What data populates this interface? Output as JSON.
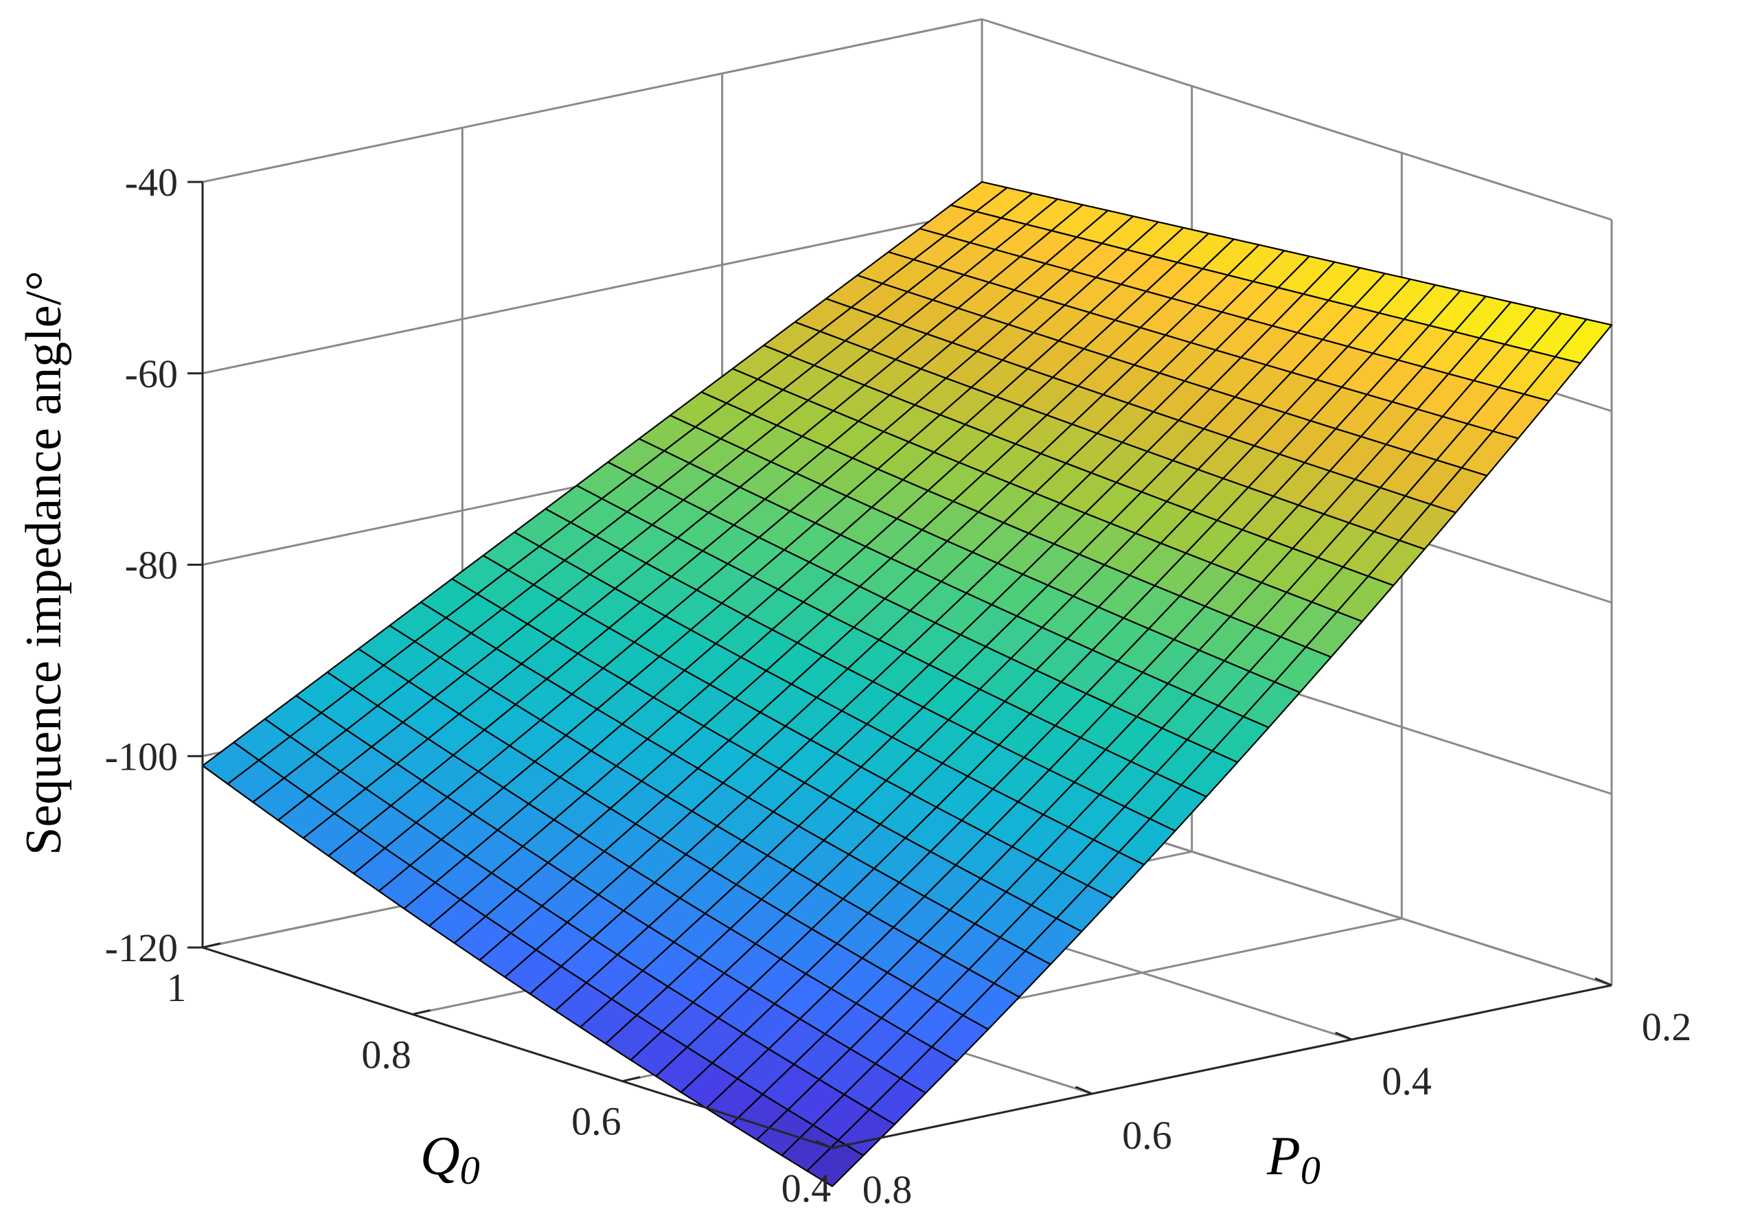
{
  "chart_data": {
    "type": "surface",
    "x_axis": {
      "var": "P",
      "sub": "0",
      "ticks": [
        "0.2",
        "0.4",
        "0.6",
        "0.8"
      ],
      "range": [
        0.2,
        0.8
      ]
    },
    "y_axis": {
      "var": "Q",
      "sub": "0",
      "ticks": [
        "0.4",
        "0.6",
        "0.8",
        "1"
      ],
      "range": [
        0.4,
        1.0
      ]
    },
    "z_axis": {
      "label": "Sequence impedance angle/°",
      "ticks": [
        "-40",
        "-60",
        "-80",
        "-100",
        "-120"
      ],
      "range": [
        -120,
        -40
      ]
    },
    "grid": true,
    "colormap": "parula",
    "grid_resolution": 25,
    "corners": [
      {
        "P": 0.2,
        "Q": 0.4,
        "z": -51
      },
      {
        "P": 0.2,
        "Q": 1.0,
        "z": -57
      },
      {
        "P": 0.8,
        "Q": 0.4,
        "z": -124
      },
      {
        "P": 0.8,
        "Q": 1.0,
        "z": -101
      }
    ],
    "axis_color": "#262626",
    "grid_color": "#8a8a8a",
    "edge_color": "#000000"
  }
}
